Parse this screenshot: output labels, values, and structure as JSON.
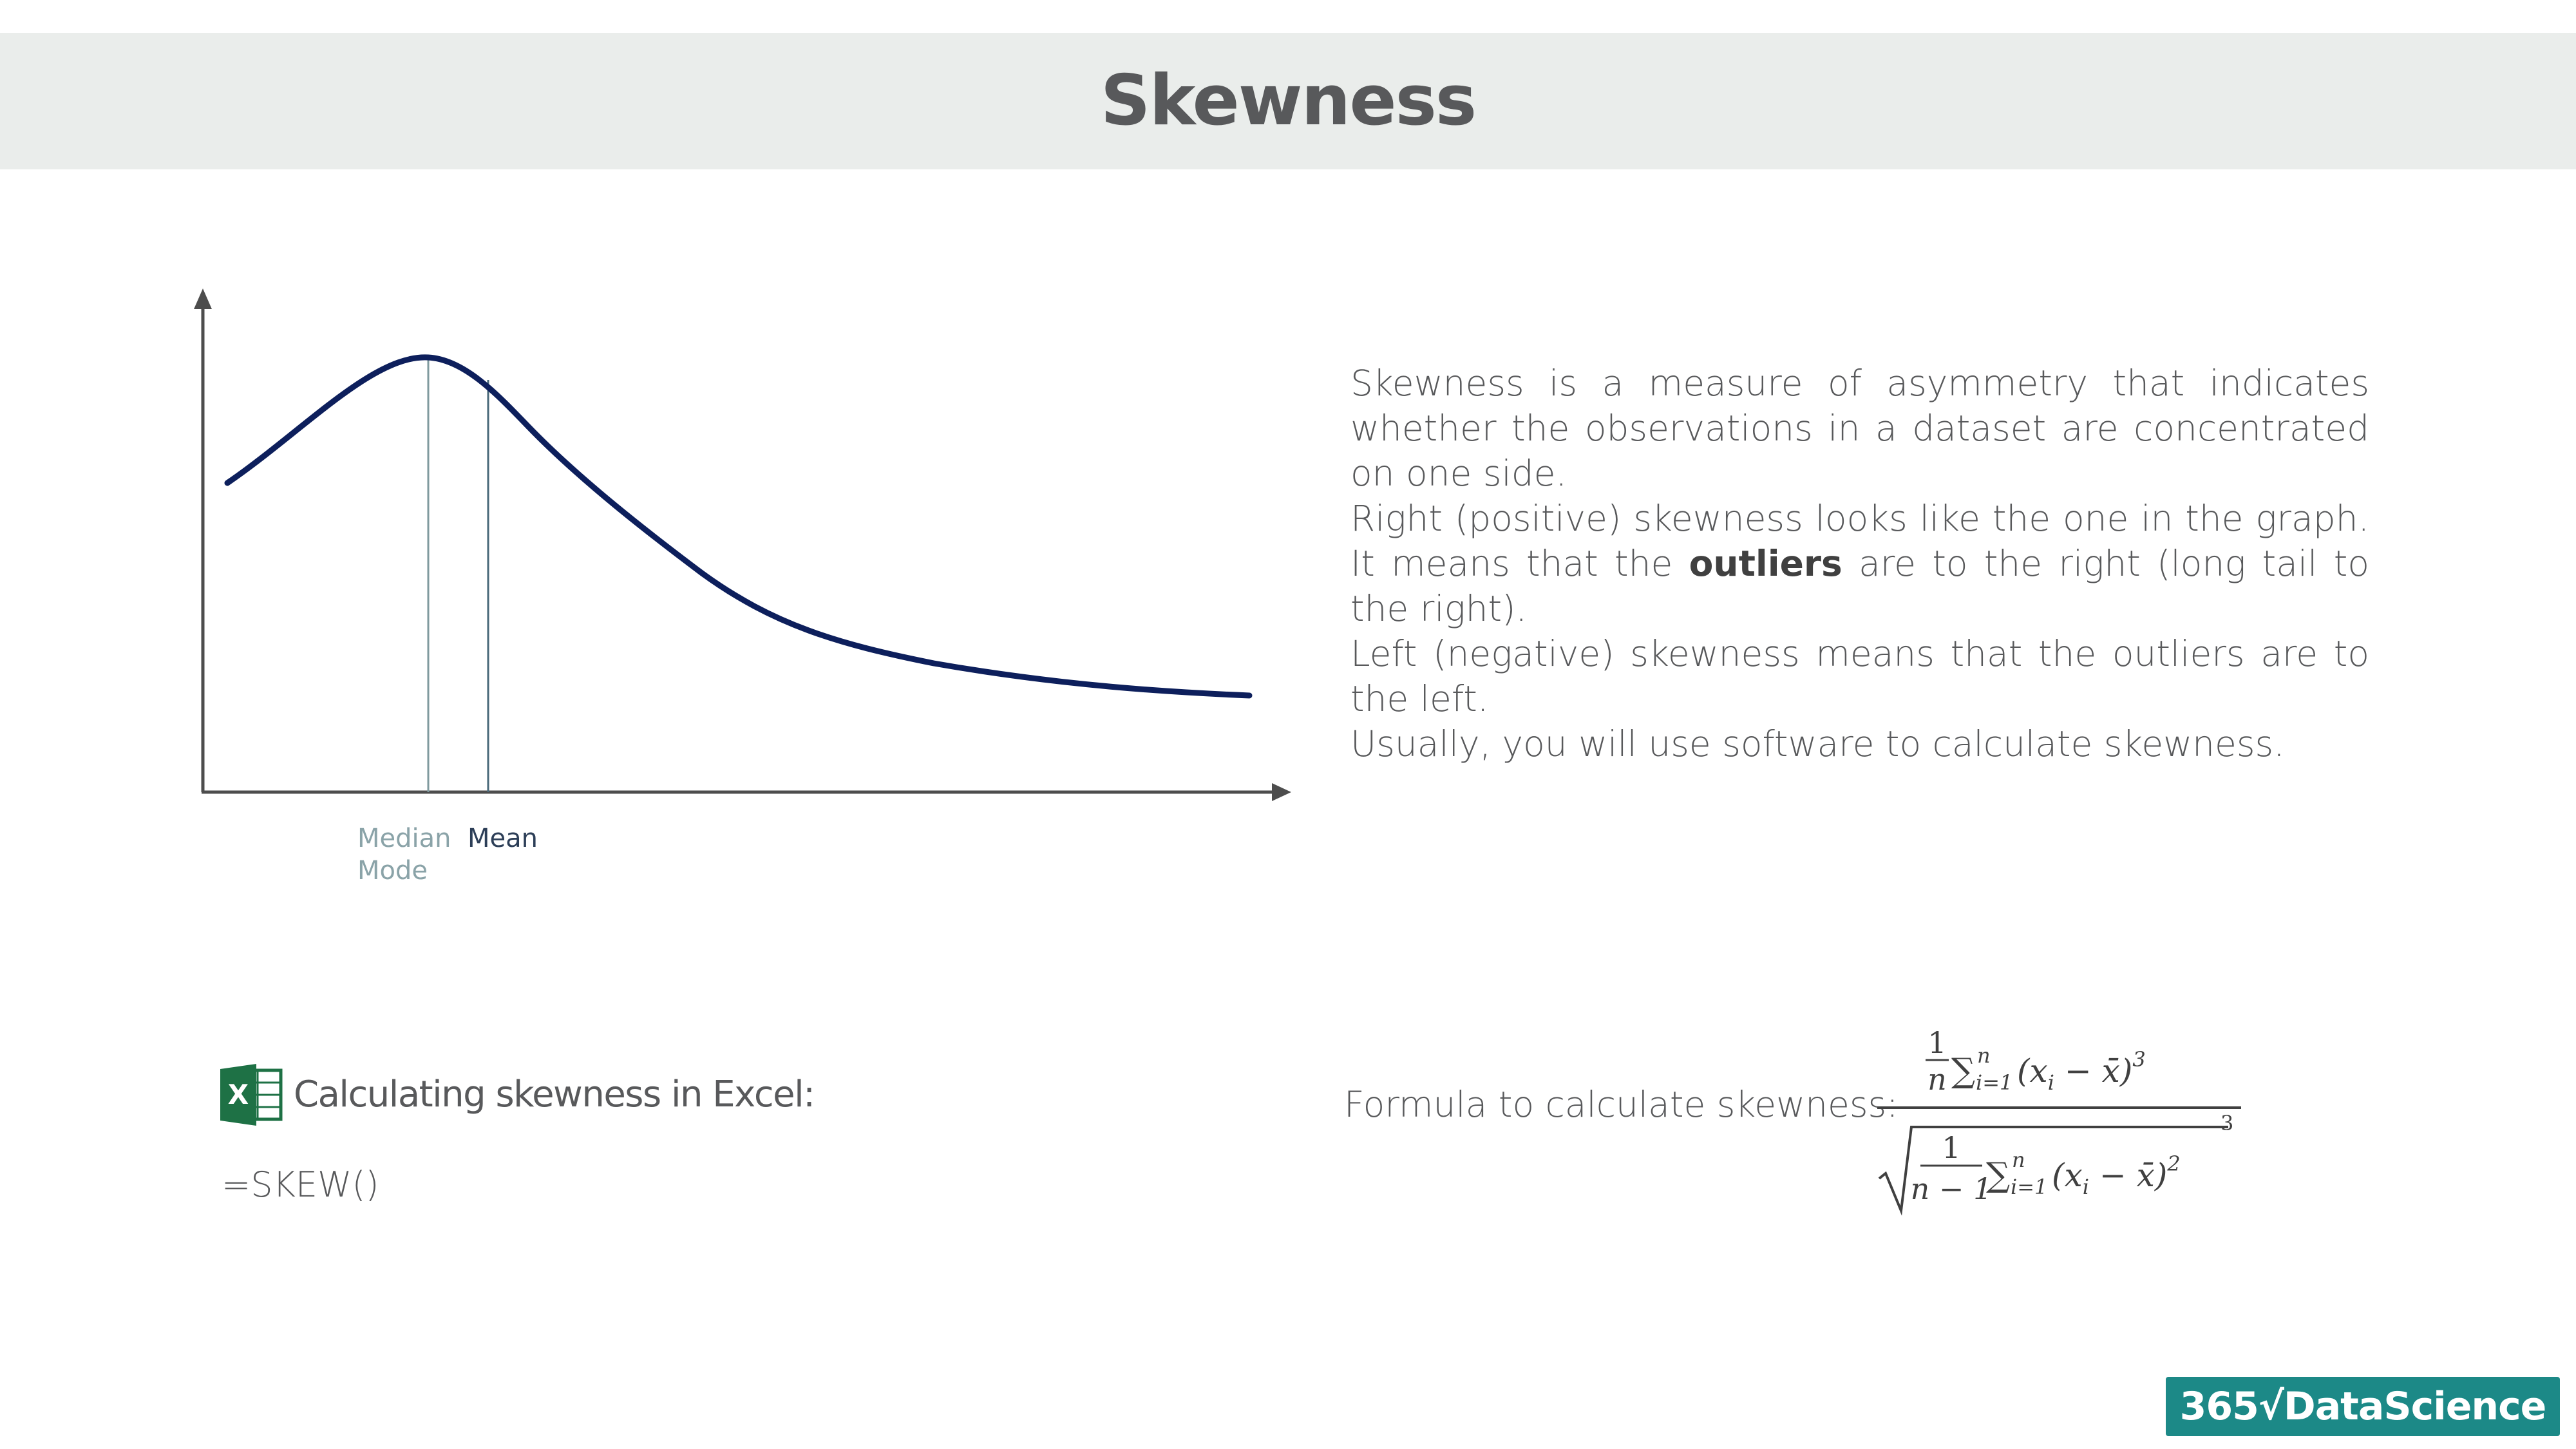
{
  "title": "Skewness",
  "chart": {
    "label_median": "Median",
    "label_mode": "Mode",
    "label_mean": "Mean"
  },
  "paragraphs": {
    "p1": "Skewness is a measure of asymmetry that indicates whether the observations in a dataset are concentrated on one side.",
    "p2_before": "Right (positive) skewness looks like the one in the graph. It means that the ",
    "p2_bold": "outliers",
    "p2_after": " are to the right (long tail to the right).",
    "p3": "Left (negative) skewness means that the outliers are to the left.",
    "p4": "Usually, you will use software to calculate skewness."
  },
  "excel": {
    "heading": "Calculating skewness in Excel:",
    "formula": "=SKEW()",
    "icon_letter": "X"
  },
  "formula_label": "Formula to calculate skewness:",
  "formula": {
    "num_1": "1",
    "num_n": "n",
    "sum": "∑",
    "sup_n": "n",
    "sub_i1": "i=1",
    "term3": "(x",
    "sub_i": "i",
    "minus_xbar": " − x̄)",
    "pow3": "3",
    "den_1": "1",
    "den_n1": "n − 1",
    "pow2": "2",
    "outer_pow": "3"
  },
  "brand": "365√DataScience",
  "colors": {
    "curve": "#0d1f5c",
    "axis": "#4d4d4d",
    "median_line": "#7f9a9e",
    "mean_line": "#4a6a7a",
    "title_band": "#eaedeb",
    "brand_bg": "#1c8987",
    "excel_green": "#1e7145"
  }
}
